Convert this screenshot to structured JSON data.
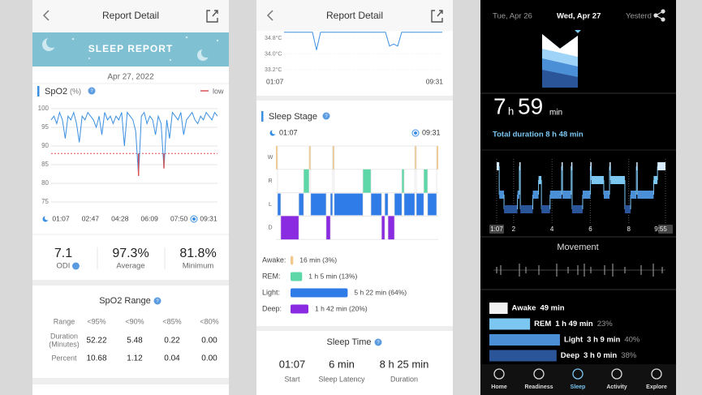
{
  "left": {
    "header": {
      "title": "Report Detail"
    },
    "banner": "SLEEP REPORT",
    "date": "Apr 27, 2022",
    "spo2": {
      "type": "line",
      "title": "SpO2",
      "unit": "(%)",
      "legend": "low",
      "color": "#3b8fe0",
      "low_color": "#e0504f",
      "low": 88,
      "ylim": [
        75,
        100
      ],
      "yticks": [
        75,
        80,
        85,
        90,
        95,
        100
      ],
      "grid": true,
      "x_labels": [
        "01:07",
        "02:47",
        "04:28",
        "06:09",
        "07:50",
        "09:31"
      ],
      "values": [
        97,
        98,
        96,
        99,
        97,
        92,
        98,
        97,
        99,
        96,
        91,
        98,
        97,
        99,
        98,
        97,
        95,
        98,
        93,
        99,
        97,
        98,
        96,
        98,
        97,
        99,
        90,
        99,
        98,
        97,
        94,
        82,
        98,
        99,
        96,
        98,
        97,
        93,
        98,
        96,
        84,
        97,
        92,
        99,
        98,
        97,
        99,
        93,
        97,
        98,
        99,
        97,
        96,
        98,
        97,
        99,
        98,
        97,
        99,
        98
      ]
    },
    "stats": [
      {
        "value": "7.1",
        "label": "ODI"
      },
      {
        "value": "97.3%",
        "label": "Average"
      },
      {
        "value": "81.8%",
        "label": "Minimum"
      }
    ],
    "range": {
      "title": "SpO2 Range",
      "columns": [
        "Range",
        "<95%",
        "<90%",
        "<85%",
        "<80%"
      ],
      "rows": [
        {
          "label": [
            "Duration",
            "(Minutes)"
          ],
          "cells": [
            "52.22",
            "5.48",
            "0.22",
            "0.00"
          ]
        },
        {
          "label": [
            "Percent"
          ],
          "cells": [
            "10.68",
            "1.12",
            "0.04",
            "0.00"
          ]
        }
      ]
    }
  },
  "middle": {
    "header": {
      "title": "Report Detail"
    },
    "temperature": {
      "type": "line",
      "color": "#3b8fe0",
      "ylim": [
        33.2,
        34.8
      ],
      "yticks": [
        {
          "value": 34.8,
          "label": "34.8°C"
        },
        {
          "value": 34.0,
          "label": "34.0°C"
        },
        {
          "value": 33.2,
          "label": "33.2°C"
        }
      ],
      "x_labels": [
        "01:07",
        "09:31"
      ],
      "values": [
        35.1,
        35.1,
        35.1,
        35.1,
        35.1,
        35.1,
        35.1,
        35.1,
        34.2,
        35.1,
        35.1,
        35.1,
        35.1,
        35.1,
        35.1,
        35.1,
        35.1,
        35.1,
        35.1,
        35.1,
        35.1,
        35.1,
        35.1,
        35.1,
        35.1,
        35.1,
        34.4,
        34.5,
        34.4,
        35.1,
        35.1,
        35.1,
        35.1,
        35.1,
        35.1,
        35.1,
        35.1,
        35.1,
        35.1,
        35.1
      ]
    },
    "sleep_stage": {
      "type": "hypnogram",
      "title": "Sleep Stage",
      "start": "01:07",
      "end": "09:31",
      "stages": [
        "W",
        "R",
        "L",
        "D"
      ],
      "colors": [
        "#f3c88a",
        "#5dd6a8",
        "#2f7be8",
        "#8a2be2"
      ],
      "xlim": [
        0,
        504
      ],
      "segments": [
        [
          0,
          5,
          0
        ],
        [
          5,
          15,
          2
        ],
        [
          15,
          71,
          3
        ],
        [
          71,
          86,
          2
        ],
        [
          86,
          103,
          1
        ],
        [
          103,
          108,
          0
        ],
        [
          108,
          156,
          2
        ],
        [
          156,
          169,
          3
        ],
        [
          169,
          176,
          2
        ],
        [
          176,
          181,
          0
        ],
        [
          181,
          270,
          2
        ],
        [
          270,
          295,
          1
        ],
        [
          295,
          328,
          2
        ],
        [
          328,
          338,
          3
        ],
        [
          338,
          348,
          2
        ],
        [
          348,
          368,
          3
        ],
        [
          368,
          391,
          2
        ],
        [
          391,
          398,
          1
        ],
        [
          398,
          431,
          2
        ],
        [
          431,
          436,
          0
        ],
        [
          436,
          459,
          2
        ],
        [
          459,
          471,
          1
        ],
        [
          471,
          499,
          2
        ],
        [
          499,
          504,
          0
        ]
      ],
      "legend": [
        {
          "name": "Awake:",
          "value": 3,
          "value_label": "16 min (3%)"
        },
        {
          "name": "REM:",
          "value": 13,
          "value_label": "1 h 5 min (13%)"
        },
        {
          "name": "Light:",
          "value": 64,
          "value_label": "5 h 22 min (64%)"
        },
        {
          "name": "Deep:",
          "value": 20,
          "value_label": "1 h 42 min (20%)"
        }
      ]
    },
    "sleep_time": {
      "title": "Sleep Time",
      "items": [
        {
          "value": "01:07",
          "label": "Start"
        },
        {
          "value": "6 min",
          "label": "Sleep Latency"
        },
        {
          "value": "8 h 25 min",
          "label": "Duration"
        }
      ]
    }
  },
  "right": {
    "dates": [
      "Tue, Apr 26",
      "Wed, Apr 27",
      "Yesterd"
    ],
    "total": {
      "hours": "7",
      "h": "h",
      "minutes": "59",
      "min": "min"
    },
    "total_duration": "Total duration 8 h 48 min",
    "hypnogram": {
      "type": "hypnogram",
      "xlim": [
        1.117,
        9.917
      ],
      "xticks": [
        {
          "value": 1.117,
          "label": "1:07"
        },
        2,
        4,
        6,
        8,
        {
          "value": 9.917,
          "label": "9:55"
        }
      ],
      "colors": [
        "#d8ecff",
        "#7cc6f2",
        "#4b8fd6",
        "#2a5599"
      ],
      "segments": [
        [
          1.117,
          1.25,
          0
        ],
        [
          1.25,
          1.5,
          2
        ],
        [
          1.5,
          2.2,
          3
        ],
        [
          2.2,
          2.3,
          2
        ],
        [
          2.3,
          2.35,
          0
        ],
        [
          2.35,
          3.0,
          3
        ],
        [
          3.0,
          3.3,
          2
        ],
        [
          3.3,
          3.45,
          1
        ],
        [
          3.45,
          3.9,
          3
        ],
        [
          3.9,
          4.5,
          2
        ],
        [
          4.5,
          4.55,
          0
        ],
        [
          4.55,
          5.0,
          2
        ],
        [
          5.0,
          5.05,
          0
        ],
        [
          5.05,
          5.6,
          3
        ],
        [
          5.6,
          6.0,
          2
        ],
        [
          6.0,
          6.05,
          0
        ],
        [
          6.05,
          6.7,
          1
        ],
        [
          6.7,
          7.0,
          2
        ],
        [
          7.0,
          7.05,
          0
        ],
        [
          7.05,
          7.8,
          1
        ],
        [
          7.8,
          8.1,
          3
        ],
        [
          8.1,
          8.4,
          2
        ],
        [
          8.4,
          8.45,
          0
        ],
        [
          8.45,
          9.3,
          2
        ],
        [
          9.3,
          9.5,
          1
        ],
        [
          9.5,
          9.917,
          0
        ]
      ]
    },
    "movement": "Movement",
    "stages": [
      {
        "name": "Awake",
        "duration": "49 min",
        "minutes": 49,
        "color": "#f2f2f2"
      },
      {
        "name": "REM",
        "duration": "1 h 49 min",
        "percent": "23%",
        "minutes": 109,
        "color": "#7cc6f2"
      },
      {
        "name": "Light",
        "duration": "3 h 9 min",
        "percent": "40%",
        "minutes": 189,
        "color": "#4b8fd6"
      },
      {
        "name": "Deep",
        "duration": "3 h 0 min",
        "percent": "38%",
        "minutes": 180,
        "color": "#2a5599"
      }
    ],
    "nav": [
      "Home",
      "Readiness",
      "Sleep",
      "Activity",
      "Explore"
    ]
  }
}
